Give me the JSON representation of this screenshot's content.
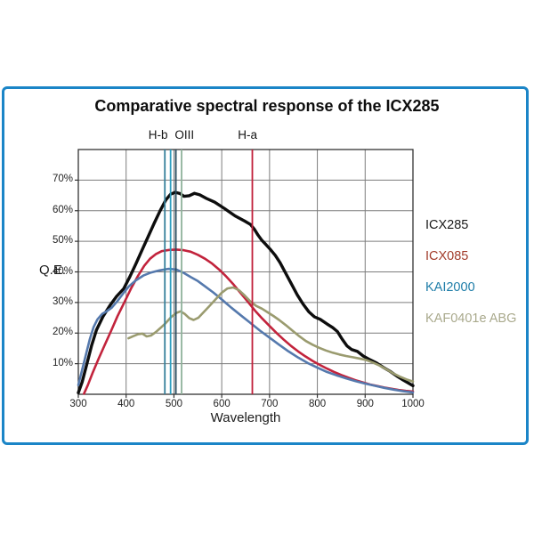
{
  "title": "Comparative spectral response of the ICX285",
  "panel": {
    "border_color": "#1b85c7",
    "background": "#ffffff"
  },
  "axes": {
    "x_label": "Wavelength",
    "y_label": "Q.E.",
    "x_ticks": [
      "300",
      "400",
      "500",
      "600",
      "700",
      "800",
      "900",
      "1000"
    ],
    "y_ticks": [
      "10%",
      "20%",
      "30%",
      "40%",
      "50%",
      "60%",
      "70%"
    ]
  },
  "legend": [
    {
      "label": "ICX285",
      "color": "#1a1a1a"
    },
    {
      "label": "ICX085",
      "color": "#a23c2b"
    },
    {
      "label": "KAI2000",
      "color": "#1e7da8"
    },
    {
      "label": "KAF0401e ABG",
      "color": "#a9a98c"
    }
  ],
  "chart_data": {
    "type": "line",
    "title": "Comparative spectral response of the ICX285",
    "xlabel": "Wavelength",
    "ylabel": "Q.E.",
    "xlim": [
      300,
      1000
    ],
    "ylim": [
      0,
      80
    ],
    "x_tick_values": [
      300,
      400,
      500,
      600,
      700,
      800,
      900,
      1000
    ],
    "y_tick_values": [
      10,
      20,
      30,
      40,
      50,
      60,
      70
    ],
    "y_tick_format": "percent",
    "grid": true,
    "grid_color": "#7d7d7d",
    "frame_color": "#333333",
    "legend_position": "right",
    "markers": [
      {
        "label": "H-b",
        "label_wavelength": 467,
        "lines": [
          {
            "wavelength": 481,
            "color": "#35809b"
          },
          {
            "wavelength": 493,
            "color": "#2d9fc0"
          }
        ]
      },
      {
        "label": "OIII",
        "label_wavelength": 522,
        "lines": [
          {
            "wavelength": 504,
            "color": "#274b5e"
          },
          {
            "wavelength": 516,
            "color": "#8fb29b"
          }
        ]
      },
      {
        "label": "H-a",
        "label_wavelength": 654,
        "lines": [
          {
            "wavelength": 664,
            "color": "#c1203b"
          }
        ]
      }
    ],
    "series": [
      {
        "name": "ICX285",
        "color": "#0d0d0d",
        "width": 3.4,
        "points": [
          [
            300,
            0.5
          ],
          [
            308,
            4
          ],
          [
            318,
            10
          ],
          [
            328,
            16
          ],
          [
            338,
            21
          ],
          [
            352,
            25.5
          ],
          [
            366,
            29
          ],
          [
            380,
            32
          ],
          [
            395,
            34.5
          ],
          [
            408,
            38.5
          ],
          [
            420,
            42.5
          ],
          [
            433,
            47
          ],
          [
            446,
            51.5
          ],
          [
            459,
            56
          ],
          [
            471,
            60
          ],
          [
            483,
            63.5
          ],
          [
            493,
            65.4
          ],
          [
            503,
            66
          ],
          [
            513,
            65.6
          ],
          [
            521,
            64.7
          ],
          [
            532,
            64.9
          ],
          [
            543,
            65.7
          ],
          [
            554,
            65.2
          ],
          [
            568,
            64
          ],
          [
            585,
            62.8
          ],
          [
            605,
            60.8
          ],
          [
            628,
            58.3
          ],
          [
            648,
            56.6
          ],
          [
            660,
            55.5
          ],
          [
            668,
            54
          ],
          [
            676,
            52
          ],
          [
            684,
            50.3
          ],
          [
            692,
            49
          ],
          [
            702,
            47.3
          ],
          [
            712,
            45.4
          ],
          [
            722,
            43
          ],
          [
            734,
            39.5
          ],
          [
            746,
            36
          ],
          [
            758,
            32.5
          ],
          [
            770,
            29.5
          ],
          [
            782,
            27
          ],
          [
            794,
            25.3
          ],
          [
            806,
            24.5
          ],
          [
            820,
            23
          ],
          [
            832,
            21.8
          ],
          [
            842,
            20.5
          ],
          [
            852,
            18
          ],
          [
            862,
            15.8
          ],
          [
            872,
            14.6
          ],
          [
            884,
            14
          ],
          [
            896,
            12.5
          ],
          [
            910,
            11.3
          ],
          [
            924,
            10.2
          ],
          [
            938,
            8.8
          ],
          [
            952,
            7.5
          ],
          [
            966,
            6
          ],
          [
            980,
            4.6
          ],
          [
            1000,
            2.8
          ]
        ]
      },
      {
        "name": "ICX085",
        "color": "#c2233c",
        "width": 2.6,
        "points": [
          [
            312,
            0.2
          ],
          [
            320,
            3
          ],
          [
            330,
            7
          ],
          [
            342,
            11.5
          ],
          [
            355,
            16
          ],
          [
            368,
            20.5
          ],
          [
            382,
            25.5
          ],
          [
            396,
            30
          ],
          [
            410,
            34.5
          ],
          [
            424,
            38.5
          ],
          [
            438,
            42
          ],
          [
            450,
            44.3
          ],
          [
            462,
            45.8
          ],
          [
            475,
            46.8
          ],
          [
            490,
            47.2
          ],
          [
            505,
            47.3
          ],
          [
            520,
            47.1
          ],
          [
            535,
            46.6
          ],
          [
            550,
            45.6
          ],
          [
            565,
            44.3
          ],
          [
            580,
            42.7
          ],
          [
            595,
            40.7
          ],
          [
            610,
            38.4
          ],
          [
            625,
            35.8
          ],
          [
            640,
            33
          ],
          [
            656,
            30
          ],
          [
            670,
            27.3
          ],
          [
            685,
            24.7
          ],
          [
            700,
            22.3
          ],
          [
            715,
            20
          ],
          [
            730,
            17.8
          ],
          [
            745,
            15.8
          ],
          [
            760,
            14
          ],
          [
            775,
            12.4
          ],
          [
            790,
            10.9
          ],
          [
            805,
            9.6
          ],
          [
            820,
            8.4
          ],
          [
            835,
            7.3
          ],
          [
            850,
            6.3
          ],
          [
            865,
            5.4
          ],
          [
            880,
            4.6
          ],
          [
            895,
            3.9
          ],
          [
            910,
            3.2
          ],
          [
            925,
            2.7
          ],
          [
            940,
            2.2
          ],
          [
            955,
            1.8
          ],
          [
            970,
            1.4
          ],
          [
            985,
            1.1
          ],
          [
            1000,
            0.9
          ]
        ]
      },
      {
        "name": "KAI2000",
        "color": "#5579ad",
        "width": 2.6,
        "points": [
          [
            300,
            3
          ],
          [
            308,
            8
          ],
          [
            316,
            13
          ],
          [
            324,
            18
          ],
          [
            332,
            22
          ],
          [
            340,
            24.5
          ],
          [
            350,
            26.3
          ],
          [
            360,
            27.2
          ],
          [
            370,
            28.3
          ],
          [
            382,
            30.5
          ],
          [
            394,
            33
          ],
          [
            406,
            35.3
          ],
          [
            420,
            37.2
          ],
          [
            436,
            38.8
          ],
          [
            452,
            39.8
          ],
          [
            470,
            40.5
          ],
          [
            488,
            41
          ],
          [
            505,
            40.8
          ],
          [
            520,
            39.7
          ],
          [
            535,
            38.3
          ],
          [
            550,
            37
          ],
          [
            565,
            35.3
          ],
          [
            582,
            33.3
          ],
          [
            600,
            31
          ],
          [
            620,
            28.3
          ],
          [
            640,
            25.8
          ],
          [
            660,
            23.3
          ],
          [
            680,
            20.8
          ],
          [
            700,
            18.5
          ],
          [
            720,
            16.2
          ],
          [
            740,
            14
          ],
          [
            760,
            12
          ],
          [
            780,
            10.2
          ],
          [
            800,
            8.7
          ],
          [
            820,
            7.3
          ],
          [
            840,
            6.2
          ],
          [
            860,
            5.2
          ],
          [
            880,
            4.3
          ],
          [
            900,
            3.5
          ],
          [
            920,
            2.8
          ],
          [
            940,
            2.1
          ],
          [
            960,
            1.5
          ],
          [
            980,
            1
          ],
          [
            1000,
            0.6
          ]
        ]
      },
      {
        "name": "KAF0401e ABG",
        "color": "#9a9b6f",
        "width": 2.6,
        "points": [
          [
            405,
            18.3
          ],
          [
            415,
            19
          ],
          [
            425,
            19.6
          ],
          [
            434,
            19.8
          ],
          [
            443,
            18.9
          ],
          [
            452,
            19.2
          ],
          [
            462,
            20.3
          ],
          [
            472,
            21.7
          ],
          [
            483,
            23.3
          ],
          [
            494,
            25.2
          ],
          [
            505,
            26.6
          ],
          [
            514,
            27.1
          ],
          [
            523,
            26.2
          ],
          [
            532,
            24.9
          ],
          [
            541,
            24.3
          ],
          [
            551,
            25
          ],
          [
            562,
            26.8
          ],
          [
            574,
            28.8
          ],
          [
            587,
            31
          ],
          [
            600,
            33.2
          ],
          [
            612,
            34.6
          ],
          [
            624,
            34.9
          ],
          [
            636,
            34
          ],
          [
            648,
            32.3
          ],
          [
            660,
            30.3
          ],
          [
            672,
            28.9
          ],
          [
            684,
            28
          ],
          [
            696,
            26.8
          ],
          [
            708,
            25.6
          ],
          [
            720,
            24.3
          ],
          [
            734,
            22.6
          ],
          [
            748,
            20.8
          ],
          [
            762,
            19
          ],
          [
            776,
            17.4
          ],
          [
            790,
            16.2
          ],
          [
            804,
            15.2
          ],
          [
            818,
            14.3
          ],
          [
            832,
            13.6
          ],
          [
            846,
            13
          ],
          [
            860,
            12.5
          ],
          [
            874,
            12.1
          ],
          [
            888,
            11.7
          ],
          [
            902,
            11.2
          ],
          [
            916,
            10.4
          ],
          [
            930,
            9.4
          ],
          [
            944,
            8.2
          ],
          [
            958,
            6.9
          ],
          [
            972,
            5.8
          ],
          [
            986,
            4.9
          ],
          [
            1000,
            4.2
          ]
        ]
      }
    ]
  }
}
